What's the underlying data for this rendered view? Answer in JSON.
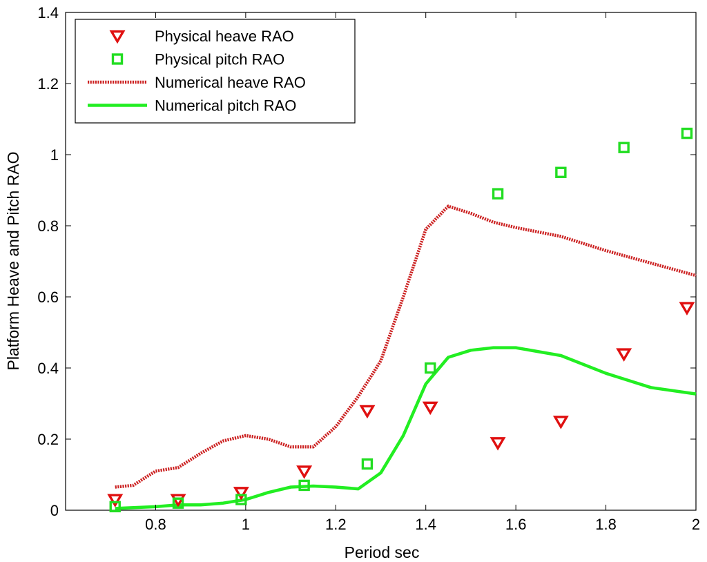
{
  "chart_data": {
    "type": "line",
    "title": "",
    "xlabel": "Period sec",
    "ylabel": "Platform Heave and Pitch RAO",
    "xlim": [
      0.6,
      2.0
    ],
    "ylim": [
      0,
      1.4
    ],
    "xticks": [
      0.8,
      1,
      1.2,
      1.4,
      1.6,
      1.8,
      2
    ],
    "xtick_labels": [
      "0.8",
      "1",
      "1.2",
      "1.4",
      "1.6",
      "1.8",
      "2"
    ],
    "yticks": [
      0,
      0.2,
      0.4,
      0.6,
      0.8,
      1,
      1.2,
      1.4
    ],
    "ytick_labels": [
      "0",
      "0.2",
      "0.4",
      "0.6",
      "0.8",
      "1",
      "1.2",
      "1.4"
    ],
    "grid": false,
    "legend_position": "top-left",
    "series": [
      {
        "name": "Physical heave RAO",
        "kind": "scatter",
        "marker": "triangle-down",
        "color": "#e01010",
        "x": [
          0.71,
          0.85,
          0.99,
          1.13,
          1.27,
          1.41,
          1.56,
          1.7,
          1.84,
          1.98
        ],
        "y": [
          0.03,
          0.03,
          0.05,
          0.11,
          0.28,
          0.29,
          0.19,
          0.25,
          0.44,
          0.57
        ]
      },
      {
        "name": "Physical pitch RAO",
        "kind": "scatter",
        "marker": "square",
        "color": "#22dd22",
        "x": [
          0.71,
          0.85,
          0.99,
          1.13,
          1.27,
          1.41,
          1.56,
          1.7,
          1.84,
          1.98
        ],
        "y": [
          0.01,
          0.02,
          0.03,
          0.07,
          0.13,
          0.4,
          0.89,
          0.95,
          1.02,
          1.06
        ]
      },
      {
        "name": "Numerical heave RAO",
        "kind": "line",
        "style": "dotted",
        "color": "#cc2222",
        "x": [
          0.71,
          0.75,
          0.8,
          0.85,
          0.9,
          0.95,
          1.0,
          1.05,
          1.1,
          1.15,
          1.2,
          1.25,
          1.3,
          1.35,
          1.4,
          1.45,
          1.5,
          1.55,
          1.6,
          1.7,
          1.8,
          1.9,
          2.0
        ],
        "y": [
          0.065,
          0.07,
          0.11,
          0.12,
          0.16,
          0.195,
          0.21,
          0.2,
          0.178,
          0.178,
          0.235,
          0.32,
          0.42,
          0.6,
          0.79,
          0.855,
          0.835,
          0.81,
          0.795,
          0.77,
          0.73,
          0.695,
          0.66
        ]
      },
      {
        "name": "Numerical pitch RAO",
        "kind": "line",
        "style": "solid",
        "color": "#22ee22",
        "x": [
          0.71,
          0.8,
          0.85,
          0.9,
          0.95,
          1.0,
          1.05,
          1.1,
          1.15,
          1.2,
          1.25,
          1.3,
          1.35,
          1.4,
          1.45,
          1.5,
          1.55,
          1.6,
          1.7,
          1.8,
          1.9,
          2.0
        ],
        "y": [
          0.005,
          0.01,
          0.015,
          0.015,
          0.02,
          0.03,
          0.05,
          0.065,
          0.068,
          0.065,
          0.06,
          0.105,
          0.21,
          0.355,
          0.43,
          0.45,
          0.457,
          0.457,
          0.435,
          0.385,
          0.345,
          0.327
        ]
      }
    ]
  }
}
